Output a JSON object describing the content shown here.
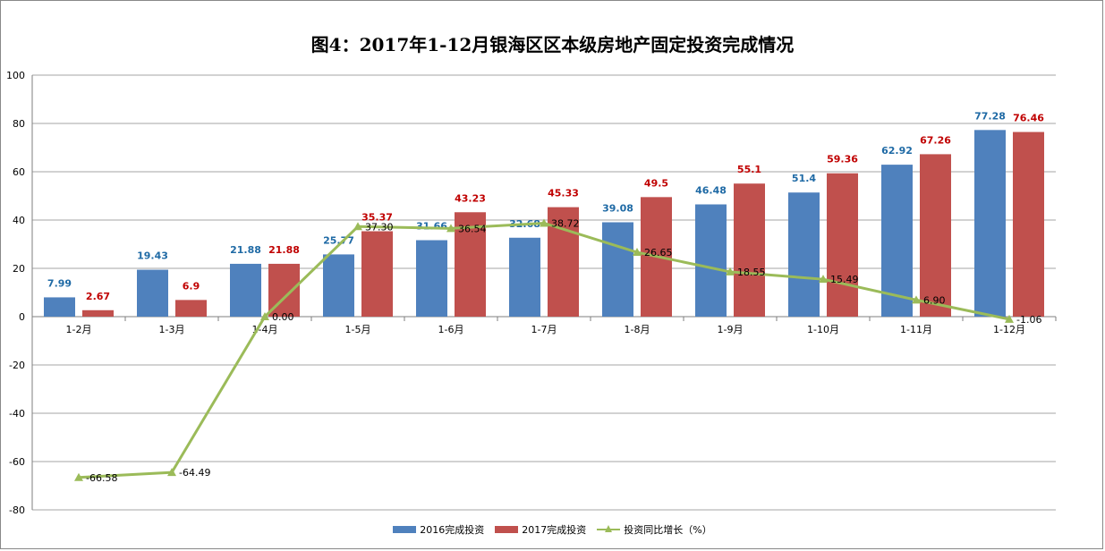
{
  "chart_data": {
    "type": "bar",
    "title": "图4：2017年1-12月银海区区本级房地产固定投资完成情况",
    "categories": [
      "1-2月",
      "1-3月",
      "1-4月",
      "1-5月",
      "1-6月",
      "1-7月",
      "1-8月",
      "1-9月",
      "1-10月",
      "1-11月",
      "1-12月"
    ],
    "ylim": [
      -80,
      100
    ],
    "yticks": [
      100,
      80,
      60,
      40,
      20,
      0,
      -20,
      -40,
      -60,
      -80
    ],
    "grid": true,
    "legend_position": "bottom",
    "series": [
      {
        "name": "2016完成投资",
        "type": "bar",
        "color": "#4f81bd",
        "label_color": "#1f6aa5",
        "values": [
          7.99,
          19.43,
          21.88,
          25.77,
          31.66,
          32.68,
          39.08,
          46.48,
          51.4,
          62.92,
          77.28
        ],
        "labels": [
          "7.99",
          "19.43",
          "21.88",
          "25.77",
          "31.66",
          "32.68",
          "39.08",
          "46.48",
          "51.4",
          "62.92",
          "77.28"
        ]
      },
      {
        "name": "2017完成投资",
        "type": "bar",
        "color": "#c0504d",
        "label_color": "#c00000",
        "values": [
          2.67,
          6.9,
          21.88,
          35.37,
          43.23,
          45.33,
          49.5,
          55.1,
          59.36,
          67.26,
          76.46
        ],
        "labels": [
          "2.67",
          "6.9",
          "21.88",
          "35.37",
          "43.23",
          "45.33",
          "49.5",
          "55.1",
          "59.36",
          "67.26",
          "76.46"
        ]
      },
      {
        "name": "投资同比增长（%）",
        "type": "line",
        "color": "#9bbb59",
        "marker": "triangle",
        "values": [
          -66.58,
          -64.49,
          0.0,
          37.3,
          36.54,
          38.72,
          26.65,
          18.55,
          15.49,
          6.9,
          -1.06
        ],
        "labels": [
          "-66.58",
          "-64.49",
          "0.00",
          "37.30",
          "36.54",
          "38.72",
          "26.65",
          "18.55",
          "15.49",
          "6.90",
          "-1.06"
        ]
      }
    ]
  }
}
